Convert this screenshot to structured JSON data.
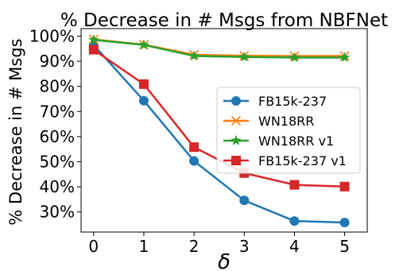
{
  "chart_data": {
    "type": "line",
    "title": "% Decrease in # Msgs from NBFNet",
    "xlabel": "δ",
    "ylabel": "% Decrease in # Msgs",
    "x": [
      0,
      1,
      2,
      3,
      4,
      5
    ],
    "x_tick_labels": [
      "0",
      "1",
      "2",
      "3",
      "4",
      "5"
    ],
    "y_ticks": [
      30,
      40,
      50,
      60,
      70,
      80,
      90,
      100
    ],
    "y_tick_labels": [
      "30%",
      "40%",
      "50%",
      "60%",
      "70%",
      "80%",
      "90%",
      "100%"
    ],
    "xlim": [
      -0.25,
      5.45
    ],
    "ylim": [
      22,
      103
    ],
    "grid": false,
    "legend_position": "center-right",
    "series": [
      {
        "name": "FB15k-237",
        "values": [
          96.5,
          74.3,
          50.3,
          34.6,
          26.4,
          25.8
        ],
        "color": "#1f77b4",
        "marker": "circle"
      },
      {
        "name": "WN18RR",
        "values": [
          98.7,
          96.6,
          92.6,
          92.2,
          92.1,
          92.1
        ],
        "color": "#ff7f0e",
        "marker": "x"
      },
      {
        "name": "WN18RR v1",
        "values": [
          98.5,
          96.5,
          92.1,
          91.7,
          91.5,
          91.5
        ],
        "color": "#2ca02c",
        "marker": "star"
      },
      {
        "name": "FB15k-237 v1",
        "values": [
          94.6,
          80.9,
          55.8,
          45.5,
          40.8,
          40.1
        ],
        "color": "#d62728",
        "marker": "square"
      }
    ]
  }
}
